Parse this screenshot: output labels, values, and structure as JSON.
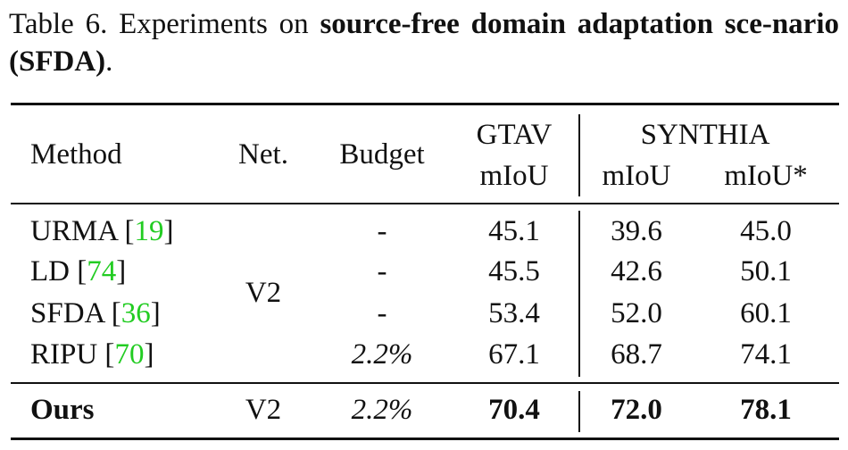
{
  "caption": {
    "prefix": "Table 6.  Experiments on ",
    "bold": "source-free domain adaptation sce-nario (SFDA)",
    "suffix": "."
  },
  "header": {
    "method": "Method",
    "net": "Net.",
    "budget": "Budget",
    "gtav": "GTAV",
    "gtav_metric": "mIoU",
    "synthia": "SYNTHIA",
    "synthia_metric": "mIoU",
    "synthia_metric_star": "mIoU*"
  },
  "rows": [
    {
      "method": "URMA [",
      "ref": "19",
      "close": "]",
      "budget": "-",
      "gtav": "45.1",
      "synthia": "39.6",
      "synthia_star": "45.0"
    },
    {
      "method": "LD [",
      "ref": "74",
      "close": "]",
      "budget": "-",
      "gtav": "45.5",
      "synthia": "42.6",
      "synthia_star": "50.1"
    },
    {
      "method": "SFDA [",
      "ref": "36",
      "close": "]",
      "budget": "-",
      "gtav": "53.4",
      "synthia": "52.0",
      "synthia_star": "60.1"
    },
    {
      "method": "RIPU [",
      "ref": "70",
      "close": "]",
      "budget": "2.2%",
      "gtav": "67.1",
      "synthia": "68.7",
      "synthia_star": "74.1"
    }
  ],
  "shared_net": "V2",
  "ours": {
    "method": "Ours",
    "net": "V2",
    "budget": "2.2%",
    "gtav": "70.4",
    "synthia": "72.0",
    "synthia_star": "78.1"
  },
  "colors": {
    "text": "#111111",
    "ref": "#22cc22"
  }
}
